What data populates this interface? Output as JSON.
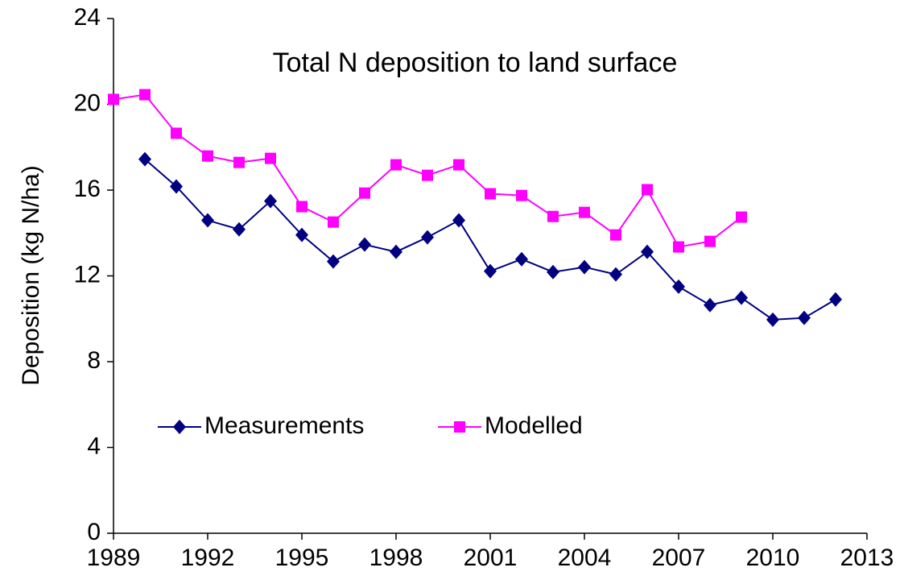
{
  "chart_data": {
    "type": "line",
    "title": "Total N deposition to land surface",
    "y_label": "Deposition (kg N/ha)",
    "x": [
      1989,
      1990,
      1991,
      1992,
      1993,
      1994,
      1995,
      1996,
      1997,
      1998,
      1999,
      2000,
      2001,
      2002,
      2003,
      2004,
      2005,
      2006,
      2007,
      2008,
      2009,
      2010,
      2011,
      2012
    ],
    "series": [
      {
        "name": "Measurements",
        "color": "#000080",
        "marker": "diamond",
        "values": [
          null,
          17.44,
          16.17,
          14.59,
          14.17,
          15.49,
          13.91,
          12.67,
          13.46,
          13.12,
          13.8,
          14.59,
          12.22,
          12.78,
          12.18,
          12.41,
          12.07,
          13.12,
          11.5,
          10.64,
          10.98,
          9.96,
          10.04,
          10.9
        ]
      },
      {
        "name": "Modelled",
        "color": "#ff00ff",
        "marker": "square",
        "values": [
          20.23,
          20.45,
          18.65,
          17.59,
          17.29,
          17.48,
          15.23,
          14.51,
          15.86,
          17.18,
          16.69,
          17.18,
          15.83,
          15.75,
          14.77,
          14.96,
          13.91,
          16.02,
          13.35,
          13.61,
          14.74,
          null,
          null,
          null
        ]
      }
    ],
    "xlim": [
      1989,
      2013
    ],
    "xticks": [
      1989,
      1992,
      1995,
      1998,
      2001,
      2004,
      2007,
      2010,
      2013
    ],
    "ylim": [
      0,
      24
    ],
    "yticks": [
      0,
      4,
      8,
      12,
      16,
      20,
      24
    ],
    "grid": false
  }
}
